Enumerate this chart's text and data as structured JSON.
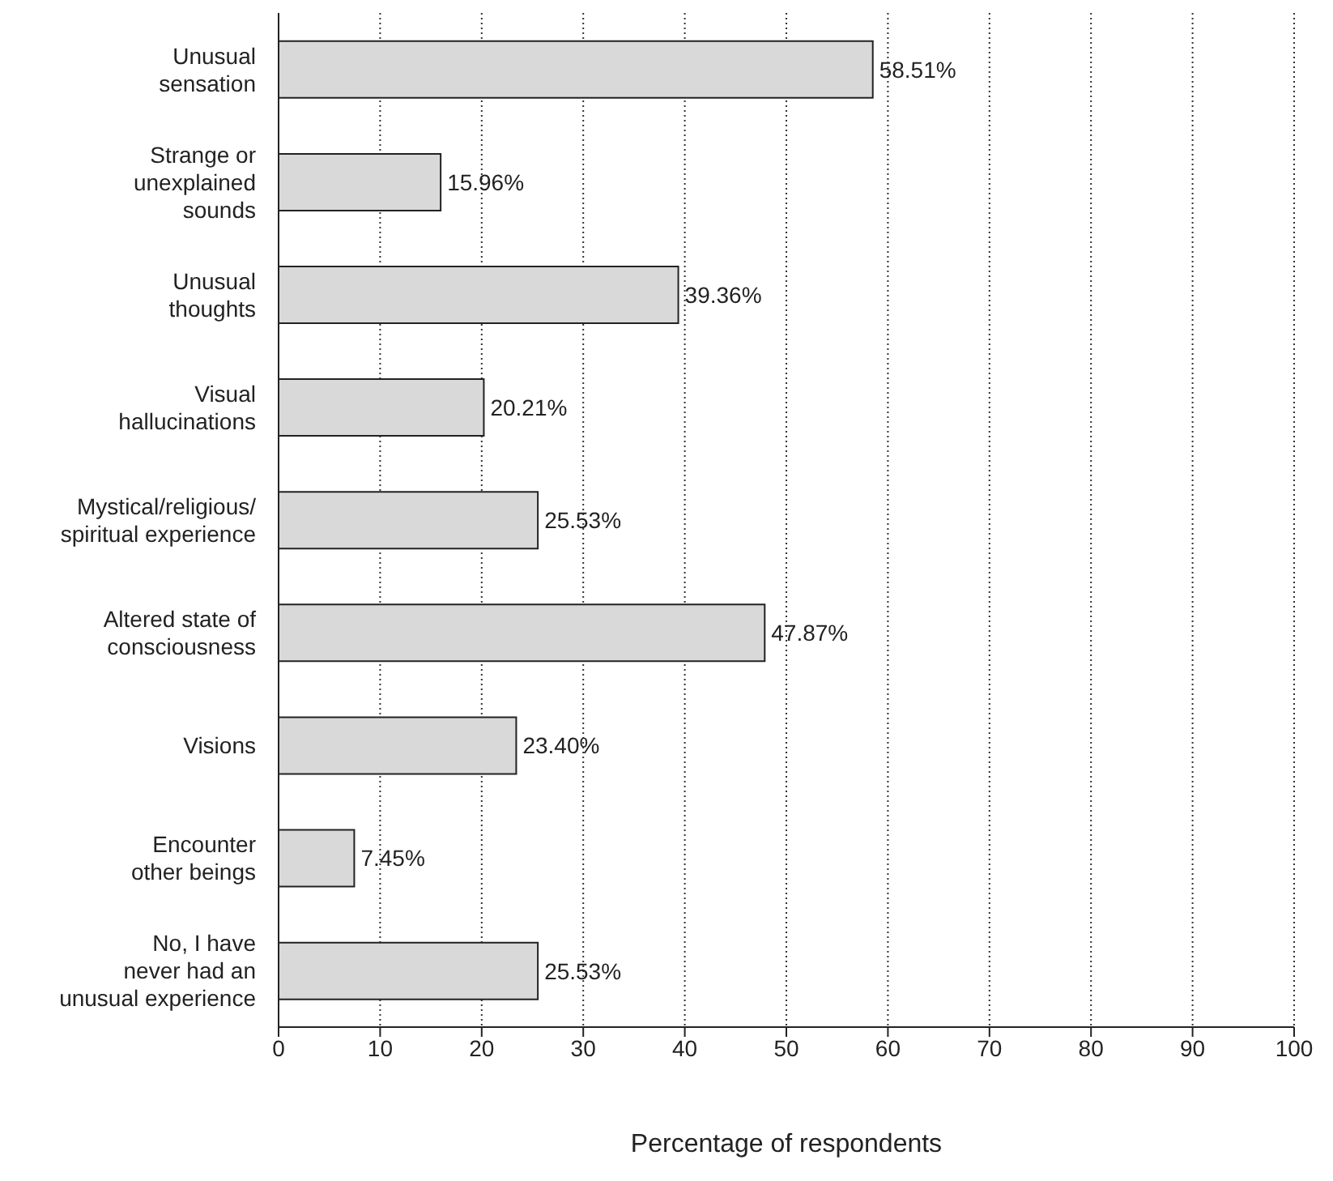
{
  "chart_data": {
    "type": "bar",
    "orientation": "horizontal",
    "xlabel": "Percentage of respondents",
    "categories": [
      "Unusual\nsensation",
      "Strange or\nunexplained\nsounds",
      "Unusual\nthoughts",
      "Visual\nhallucinations",
      "Mystical/religious/\nspiritual experience",
      "Altered state of\nconsciousness",
      "Visions",
      "Encounter\nother beings",
      "No, I have\nnever had an\nunusual experience"
    ],
    "values": [
      58.51,
      15.96,
      39.36,
      20.21,
      25.53,
      47.87,
      23.4,
      7.45,
      25.53
    ],
    "value_labels": [
      "58.51%",
      "15.96%",
      "39.36%",
      "20.21%",
      "25.53%",
      "47.87%",
      "23.40%",
      "7.45%",
      "25.53%"
    ],
    "color": "#d9d9d9",
    "xlim": [
      0,
      100
    ],
    "xticks": [
      0,
      10,
      20,
      30,
      40,
      50,
      60,
      70,
      80,
      90,
      100
    ],
    "grid": "x"
  }
}
